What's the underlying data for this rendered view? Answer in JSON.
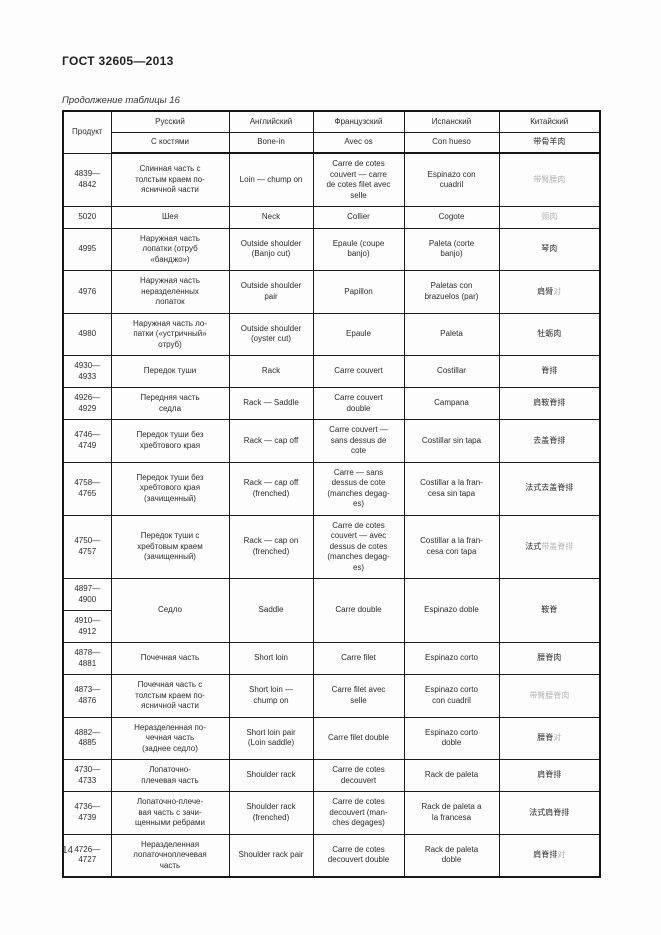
{
  "document": {
    "title": "ГОСТ 32605—2013",
    "continuation_caption": "Продолжение таблицы 16",
    "page_number": "14"
  },
  "colors": {
    "text": "#2b2b2b",
    "muted_chinese": "#b3b3b3",
    "border": "#1c1c1c"
  },
  "table": {
    "header": {
      "product": "Продукт",
      "languages": [
        "Русский",
        "Английский",
        "Французский",
        "Испанский",
        "Китайский"
      ],
      "bone_in": [
        "С костями",
        "Bone-in",
        "Avec os",
        "Con hueso",
        "带骨羊肉"
      ]
    },
    "rows": [
      {
        "code": "4839—\n4842",
        "ru": "Спинная часть с\nтолстым краем по-\nясничной части",
        "en": "Loin — chump on",
        "fr": "Carre de cotes\ncouvert — carre\nde cotes filet avec\nselle",
        "es": "Espinazo con\ncuadril",
        "zh_dark": "",
        "zh_light": "带臀腰肉"
      },
      {
        "code": "5020",
        "ru": "Шея",
        "en": "Neck",
        "fr": "Collier",
        "es": "Cogote",
        "zh_dark": "",
        "zh_light": "颈肉"
      },
      {
        "code": "4995",
        "ru": "Наружная часть\nлопатки (отруб\n«банджо»)",
        "en": "Outside shoulder\n(Banjo cut)",
        "fr": "Epaule (coupe\nbanjo)",
        "es": "Paleta (corte\nbanjo)",
        "zh_dark": "琴肉",
        "zh_light": ""
      },
      {
        "code": "4976",
        "ru": "Наружная часть\nнеразделенных\nлопаток",
        "en": "Outside shoulder\npair",
        "fr": "Papillon",
        "es": "Paletas con\nbrazuelos (par)",
        "zh_dark": "肩臂",
        "zh_light": "对"
      },
      {
        "code": "4980",
        "ru": "Наружная часть ло-\nпатки («устричный»\nотруб)",
        "en": "Outside shoulder\n(oyster cut)",
        "fr": "Epaule",
        "es": "Paleta",
        "zh_dark": "牡蛎肉",
        "zh_light": ""
      },
      {
        "code": "4930—\n4933",
        "ru": "Передок туши",
        "en": "Rack",
        "fr": "Carre couvert",
        "es": "Costillar",
        "zh_dark": "脊排",
        "zh_light": ""
      },
      {
        "code": "4926—\n4929",
        "ru": "Передняя часть\nседла",
        "en": "Rack — Saddle",
        "fr": "Carre couvert\ndouble",
        "es": "Campana",
        "zh_dark": "肩鞍脊排",
        "zh_light": ""
      },
      {
        "code": "4746—\n4749",
        "ru": "Передок туши без\nхребтового края",
        "en": "Rack — cap off",
        "fr": "Carre couvert —\nsans dessus de\ncote",
        "es": "Costillar sin tapa",
        "zh_dark": "去盖脊排",
        "zh_light": ""
      },
      {
        "code": "4758—\n4765",
        "ru": "Передок туши без\nхребтового края\n(зачищенный)",
        "en": "Rack — cap off\n(frenched)",
        "fr": "Carre — sans\ndessus de cote\n(manches degag-\nes)",
        "es": "Costillar a la fran-\ncesa sin tapa",
        "zh_dark": "法式去盖脊排",
        "zh_light": ""
      },
      {
        "code": "4750—\n4757",
        "ru": "Передок туши с\nхребтовым краем\n(зачищенный)",
        "en": "Rack — cap on\n(frenched)",
        "fr": "Carre de cotes\ncouvert — avec\ndessus de cotes\n(manches degag-\nes)",
        "es": "Costillar a la fran-\ncesa con tapa",
        "zh_dark": "法式",
        "zh_light": "带盖脊排"
      },
      {
        "code": [
          "4897—\n4900",
          "4910—\n4912"
        ],
        "ru": "Седло",
        "en": "Saddle",
        "fr": "Carre double",
        "es": "Espinazo doble",
        "zh_dark": "鞍脊",
        "zh_light": ""
      },
      {
        "code": "4878—\n4881",
        "ru": "Почечная часть",
        "en": "Short loin",
        "fr": "Carre filet",
        "es": "Espinazo corto",
        "zh_dark": "腰脊肉",
        "zh_light": ""
      },
      {
        "code": "4873—\n4876",
        "ru": "Почечная часть с\nтолстым краем по-\nясничной части",
        "en": "Short loin —\nchump on",
        "fr": "Carre filet avec\nselle",
        "es": "Espinazo corto\ncon cuadril",
        "zh_dark": "",
        "zh_light": "带臀腰脊肉"
      },
      {
        "code": "4882—\n4885",
        "ru": "Неразделенная по-\nчечная часть\n(заднее седло)",
        "en": "Short loin pair\n(Loin saddle)",
        "fr": "Carre filet double",
        "es": "Espinazo corto\ndoble",
        "zh_dark": "腰脊",
        "zh_light": "对"
      },
      {
        "code": "4730—\n4733",
        "ru": "Лопаточно-\nплечевая часть",
        "en": "Shoulder rack",
        "fr": "Carre de cotes\ndecouvert",
        "es": "Rack de paleta",
        "zh_dark": "肩脊排",
        "zh_light": ""
      },
      {
        "code": "4736—\n4739",
        "ru": "Лопаточно-плече-\nвая часть с зачи-\nщенными ребрами",
        "en": "Shoulder rack\n(frenched)",
        "fr": "Carre de cotes\ndecouvert (man-\nches degages)",
        "es": "Rack de paleta a\nla francesa",
        "zh_dark": "法式肩脊排",
        "zh_light": ""
      },
      {
        "code": "4726—\n4727",
        "ru": "Неразделенная\nлопаточноплечевая\nчасть",
        "en": "Shoulder rack pair",
        "fr": "Carre de cotes\ndecouvert double",
        "es": "Rack de paleta\ndoble",
        "zh_dark": "肩脊排",
        "zh_light": "对"
      }
    ]
  }
}
